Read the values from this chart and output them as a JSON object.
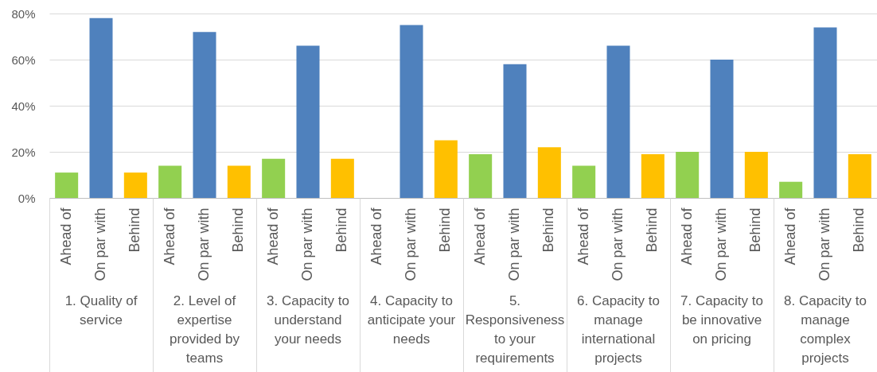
{
  "chart_data": {
    "type": "bar",
    "categories": [
      "Ahead of",
      "On par with",
      "Behind",
      "Ahead of",
      "On par with",
      "Behind",
      "Ahead of",
      "On par with",
      "Behind",
      "Ahead of",
      "On par with",
      "Behind",
      "Ahead of",
      "On par with",
      "Behind",
      "Ahead of",
      "On par with",
      "Behind",
      "Ahead of",
      "On par with",
      "Behind",
      "Ahead of",
      "On par with",
      "Behind"
    ],
    "values": [
      11,
      78,
      11,
      14,
      72,
      14,
      17,
      66,
      17,
      null,
      75,
      25,
      19,
      58,
      22,
      14,
      66,
      19,
      20,
      60,
      20,
      7,
      74,
      19
    ],
    "colors": [
      "#92d050",
      "#4f81bd",
      "#ffc000",
      "#92d050",
      "#4f81bd",
      "#ffc000",
      "#92d050",
      "#4f81bd",
      "#ffc000",
      "#92d050",
      "#4f81bd",
      "#ffc000",
      "#92d050",
      "#4f81bd",
      "#ffc000",
      "#92d050",
      "#4f81bd",
      "#ffc000",
      "#92d050",
      "#4f81bd",
      "#ffc000",
      "#92d050",
      "#4f81bd",
      "#ffc000"
    ],
    "annotations": [
      "1. Quality of service",
      "2. Level of expertise provided by teams",
      "3. Capacity to understand your needs",
      "4. Capacity to anticipate your needs",
      "5. Responsiveness to your requirements",
      "6. Capacity to manage international projects",
      "7. Capacity to be innovative on pricing",
      "8. Capacity to manage complex projects"
    ],
    "ylim": [
      0,
      80
    ],
    "yticks": [
      {
        "value": 0,
        "label": "0%"
      },
      {
        "value": 20,
        "label": "20%"
      },
      {
        "value": 40,
        "label": "40%"
      },
      {
        "value": 60,
        "label": "60%"
      },
      {
        "value": 80,
        "label": "80%"
      }
    ],
    "grid": "y"
  }
}
